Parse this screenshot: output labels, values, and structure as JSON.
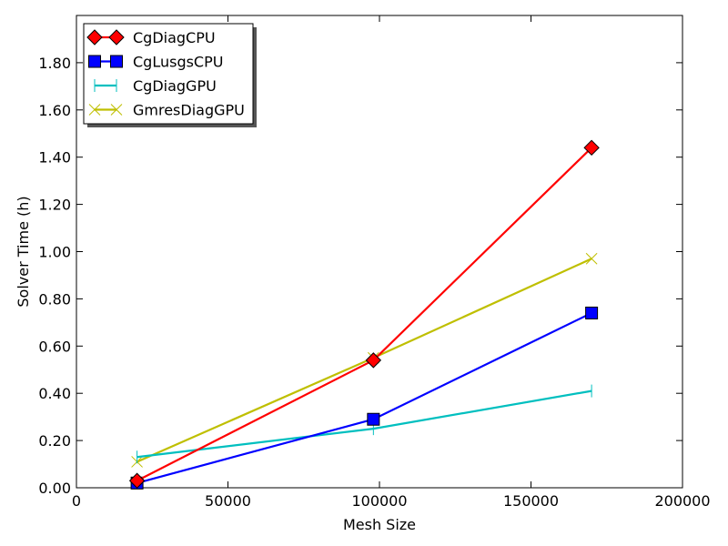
{
  "chart_data": {
    "type": "line",
    "title": "",
    "xlabel": "Mesh Size",
    "ylabel": "Solver Time (h)",
    "xlim": [
      0,
      200000
    ],
    "ylim": [
      0,
      2.0
    ],
    "xticks": [
      0,
      50000,
      100000,
      150000,
      200000
    ],
    "xtick_labels": [
      "0",
      "50000",
      "100000",
      "150000",
      "200000"
    ],
    "yticks": [
      0,
      0.2,
      0.4,
      0.6,
      0.8,
      1.0,
      1.2,
      1.4,
      1.6,
      1.8
    ],
    "ytick_labels": [
      "0.00",
      "0.20",
      "0.40",
      "0.60",
      "0.80",
      "1.00",
      "1.20",
      "1.40",
      "1.60",
      "1.80"
    ],
    "grid": false,
    "legend_position": "top-left",
    "series": [
      {
        "name": "CgDiagCPU",
        "color": "#ff0000",
        "marker": "diamond",
        "x": [
          20000,
          98000,
          170000
        ],
        "y": [
          0.03,
          0.54,
          1.44
        ]
      },
      {
        "name": "CgLusgsCPU",
        "color": "#0000ff",
        "marker": "square",
        "x": [
          20000,
          98000,
          170000
        ],
        "y": [
          0.02,
          0.29,
          0.74
        ]
      },
      {
        "name": "CgDiagGPU",
        "color": "#00bfbf",
        "marker": "vline",
        "x": [
          20000,
          98000,
          170000
        ],
        "y": [
          0.13,
          0.25,
          0.41
        ]
      },
      {
        "name": "GmresDiagGPU",
        "color": "#bfbf00",
        "marker": "x",
        "x": [
          20000,
          98000,
          170000
        ],
        "y": [
          0.11,
          0.55,
          0.97
        ]
      }
    ]
  }
}
